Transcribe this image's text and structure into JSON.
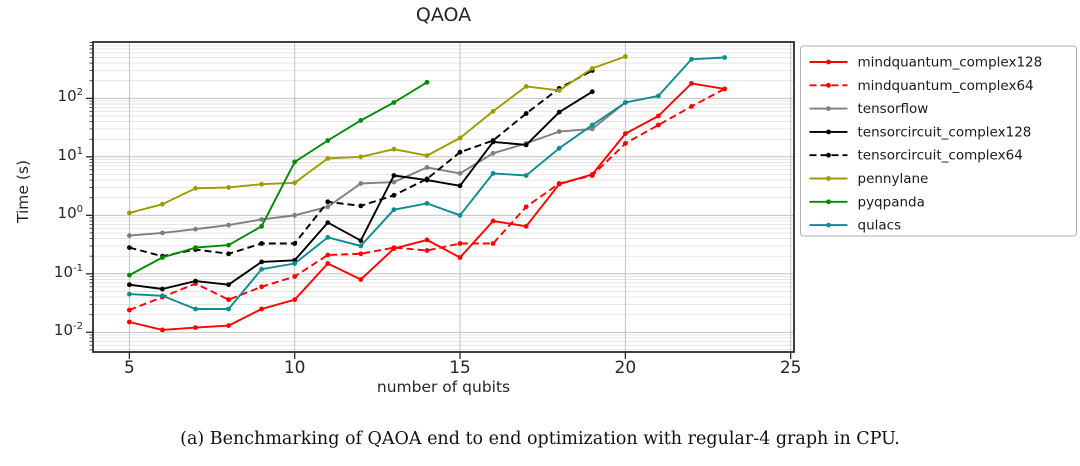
{
  "caption": "(a) Benchmarking of QAOA end to end optimization with regular-4 graph in CPU.",
  "chart_data": {
    "type": "line",
    "title": "QAOA",
    "xlabel": "number of qubits",
    "ylabel": "Time (s)",
    "x_scale": "linear",
    "y_scale": "log",
    "xlim": [
      3.9,
      25.1
    ],
    "ylim": [
      0.0046,
      920
    ],
    "x_ticks": [
      5,
      10,
      15,
      20,
      25
    ],
    "y_tick_exponents": [
      -2,
      -1,
      0,
      1,
      2
    ],
    "grid": true,
    "legend_position": "outside-right",
    "series": [
      {
        "name": "mindquantum_complex128",
        "color": "#ff0000",
        "dash": false,
        "x": [
          5,
          6,
          7,
          8,
          9,
          10,
          11,
          12,
          13,
          14,
          15,
          16,
          17,
          18,
          19,
          20,
          21,
          22,
          23
        ],
        "y": [
          0.015,
          0.011,
          0.012,
          0.013,
          0.025,
          0.036,
          0.15,
          0.08,
          0.27,
          0.38,
          0.19,
          0.8,
          0.65,
          3.4,
          5.0,
          25,
          50,
          180,
          145
        ]
      },
      {
        "name": "mindquantum_complex64",
        "color": "#ff0000",
        "dash": true,
        "x": [
          5,
          6,
          7,
          8,
          9,
          10,
          11,
          12,
          13,
          14,
          15,
          16,
          17,
          18,
          19,
          20,
          21,
          22,
          23
        ],
        "y": [
          0.024,
          0.04,
          0.068,
          0.036,
          0.06,
          0.09,
          0.21,
          0.22,
          0.28,
          0.25,
          0.33,
          0.33,
          1.4,
          3.5,
          4.8,
          17,
          35,
          73,
          145
        ]
      },
      {
        "name": "tensorflow",
        "color": "#7f7f7f",
        "dash": false,
        "x": [
          5,
          6,
          7,
          8,
          9,
          10,
          11,
          12,
          13,
          14,
          15,
          16,
          17,
          18,
          19,
          20
        ],
        "y": [
          0.45,
          0.5,
          0.58,
          0.68,
          0.85,
          1.0,
          1.4,
          3.5,
          3.7,
          6.6,
          5.2,
          11.5,
          17,
          27,
          30,
          85
        ]
      },
      {
        "name": "tensorcircuit_complex128",
        "color": "#000000",
        "dash": false,
        "x": [
          5,
          6,
          7,
          8,
          9,
          10,
          11,
          12,
          13,
          14,
          15,
          16,
          17,
          18,
          19
        ],
        "y": [
          0.065,
          0.055,
          0.075,
          0.065,
          0.16,
          0.17,
          0.75,
          0.37,
          4.8,
          4.0,
          3.2,
          18,
          16,
          58,
          130
        ]
      },
      {
        "name": "tensorcircuit_complex64",
        "color": "#000000",
        "dash": true,
        "x": [
          5,
          6,
          7,
          8,
          9,
          10,
          11,
          12,
          13,
          14,
          15,
          16,
          17,
          18,
          19
        ],
        "y": [
          0.28,
          0.2,
          0.26,
          0.22,
          0.33,
          0.33,
          1.7,
          1.45,
          2.2,
          4.2,
          12,
          19,
          55,
          148,
          300
        ]
      },
      {
        "name": "pennylane",
        "color": "#9c9c00",
        "dash": false,
        "x": [
          5,
          6,
          7,
          8,
          9,
          10,
          11,
          12,
          13,
          14,
          15,
          16,
          17,
          18,
          19,
          20
        ],
        "y": [
          1.1,
          1.55,
          2.9,
          3.0,
          3.4,
          3.6,
          9.4,
          10,
          13.5,
          10.5,
          21,
          60,
          160,
          137,
          325,
          520
        ]
      },
      {
        "name": "pyqpanda",
        "color": "#008a00",
        "dash": false,
        "x": [
          5,
          6,
          7,
          8,
          9,
          10,
          11,
          12,
          13,
          14
        ],
        "y": [
          0.095,
          0.19,
          0.28,
          0.31,
          0.65,
          8.2,
          19,
          42,
          85,
          188
        ]
      },
      {
        "name": "qulacs",
        "color": "#0e8c91",
        "dash": false,
        "x": [
          5,
          6,
          7,
          8,
          9,
          10,
          11,
          12,
          13,
          14,
          15,
          16,
          17,
          18,
          19,
          20,
          21,
          22,
          23
        ],
        "y": [
          0.045,
          0.042,
          0.025,
          0.025,
          0.12,
          0.15,
          0.42,
          0.3,
          1.25,
          1.6,
          1.0,
          5.2,
          4.8,
          14,
          35,
          85,
          110,
          465,
          500
        ]
      }
    ]
  }
}
